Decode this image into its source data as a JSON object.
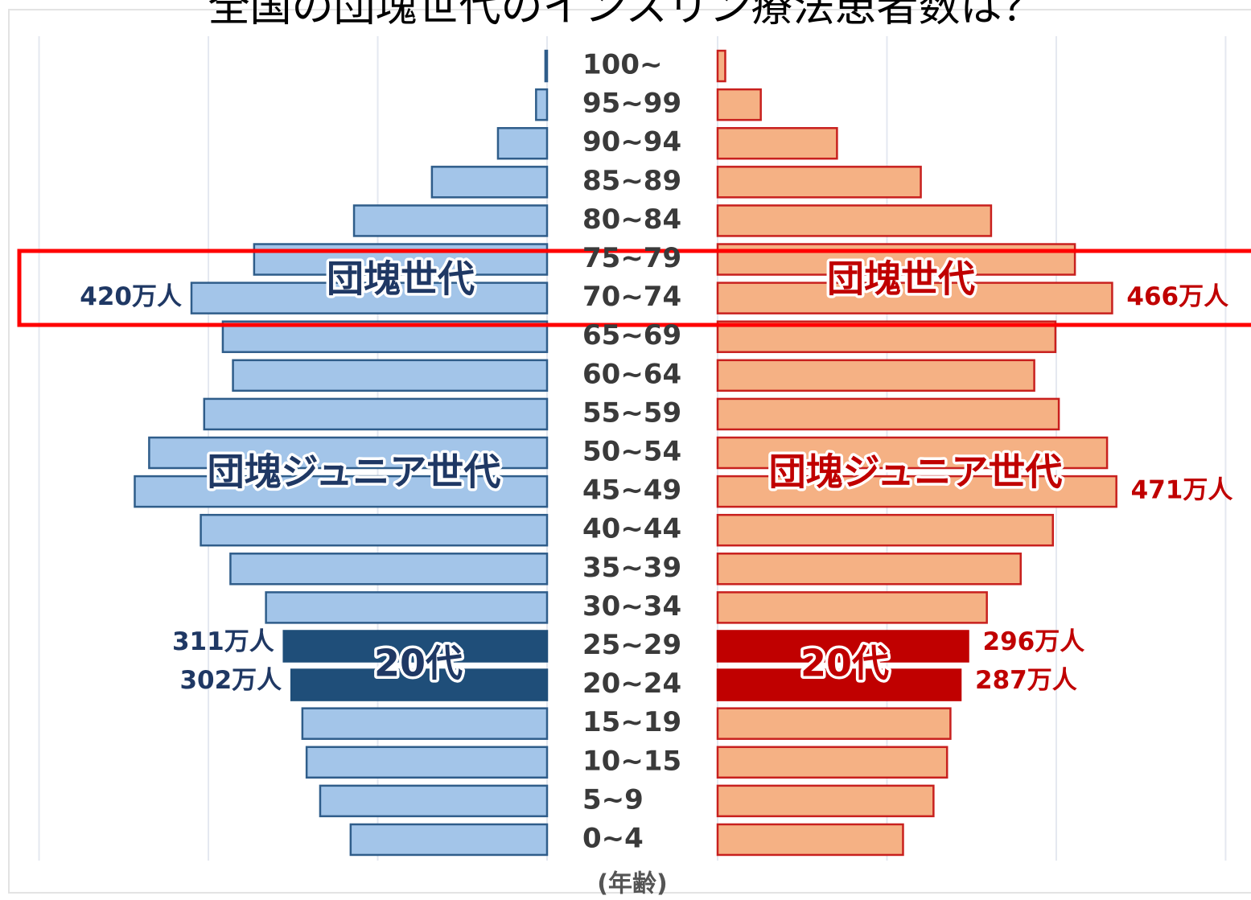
{
  "chart_data": {
    "type": "pyramid",
    "title": "全国の団塊世代のインスリン療法患者数は？",
    "x_label": "(年齢)",
    "categories": [
      "100~",
      "95~99",
      "90~94",
      "85~89",
      "80~84",
      "75~79",
      "70~74",
      "65~69",
      "60~64",
      "55~59",
      "50~54",
      "45~49",
      "40~44",
      "35~39",
      "30~34",
      "25~29",
      "20~24",
      "15~19",
      "10~15",
      "5~9",
      "0~4"
    ],
    "xlim": [
      0,
      630
    ],
    "xticks": [
      0,
      200,
      400,
      600
    ],
    "grid": true,
    "highlight_categories": [
      "25~29",
      "20~24"
    ],
    "annotations": [
      "団塊世代",
      "団塊ジュニア世代",
      "20代"
    ],
    "series": [
      {
        "side": "left",
        "color": "#a3c5e9",
        "edge_color": "#2f5d8a",
        "highlight_color": "#1f4e79",
        "label_color": "#1f3864",
        "values": [
          2,
          13,
          58,
          136,
          228,
          346,
          420,
          383,
          371,
          405,
          470,
          487,
          409,
          374,
          332,
          311,
          302,
          289,
          284,
          268,
          232
        ],
        "value_labels": [
          null,
          null,
          null,
          null,
          null,
          null,
          "420万人",
          null,
          null,
          null,
          null,
          null,
          null,
          null,
          null,
          "311万人",
          "302万人",
          null,
          null,
          null,
          null
        ]
      },
      {
        "side": "right",
        "color": "#f5b184",
        "edge_color": "#c8201e",
        "highlight_color": "#c00000",
        "label_color": "#c00000",
        "values": [
          9,
          51,
          141,
          240,
          323,
          422,
          466,
          399,
          374,
          403,
          460,
          471,
          396,
          358,
          318,
          296,
          287,
          275,
          271,
          255,
          219
        ],
        "value_labels": [
          null,
          null,
          null,
          null,
          null,
          null,
          "466万人",
          null,
          null,
          null,
          null,
          "471万人",
          null,
          null,
          null,
          "296万人",
          "287万人",
          null,
          null,
          null,
          null
        ]
      }
    ]
  }
}
